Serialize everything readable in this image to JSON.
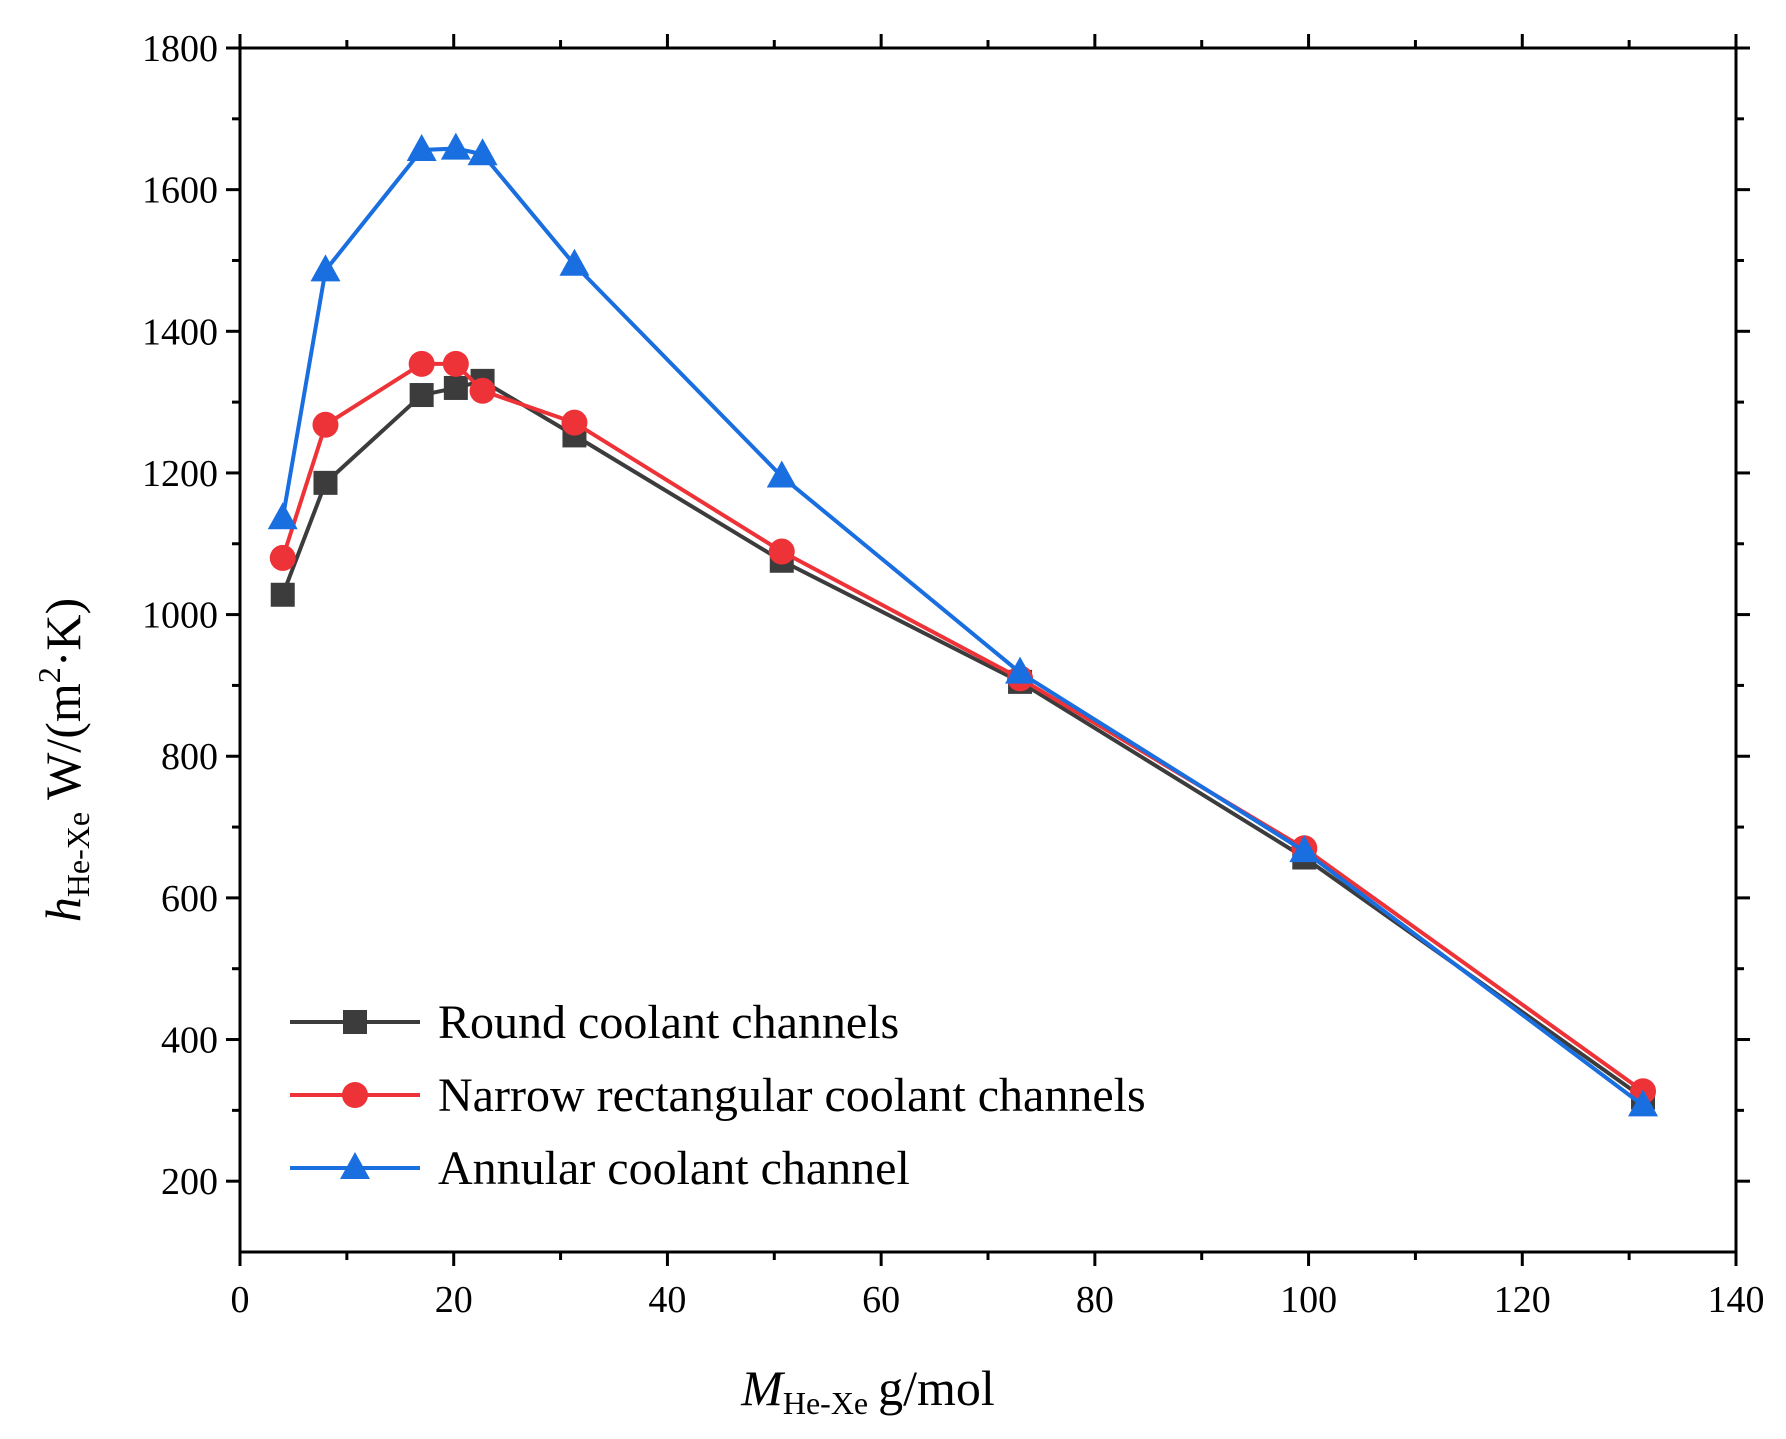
{
  "chart_data": {
    "type": "line",
    "title": "",
    "xlabel": {
      "main": "M",
      "sub": "He-Xe",
      "unit": "g/mol"
    },
    "ylabel": {
      "main": "h",
      "sub": "He-Xe",
      "unit_pre": "W/(m",
      "unit_sup": "2",
      "unit_post": "·K)"
    },
    "xlim": [
      0,
      140
    ],
    "ylim": [
      100,
      1800
    ],
    "xticks": [
      0,
      20,
      40,
      60,
      80,
      100,
      120,
      140
    ],
    "yticks": [
      200,
      400,
      600,
      800,
      1000,
      1200,
      1400,
      1600,
      1800
    ],
    "legend_position": "bottom-left",
    "series": [
      {
        "name": "Round coolant channels",
        "color": "#3c3c3c",
        "marker": "square",
        "x": [
          4,
          8,
          17,
          20.2,
          22.7,
          31.3,
          50.7,
          73,
          99.6,
          131.3
        ],
        "y": [
          1028,
          1186,
          1310,
          1320,
          1330,
          1253,
          1076,
          905,
          657,
          318
        ]
      },
      {
        "name": "Narrow rectangular coolant channels",
        "color": "#ee3338",
        "marker": "circle",
        "x": [
          4,
          8,
          17,
          20.2,
          22.7,
          31.3,
          50.7,
          73,
          99.6,
          131.3
        ],
        "y": [
          1080,
          1268,
          1354,
          1354,
          1316,
          1271,
          1089,
          910,
          670,
          327
        ]
      },
      {
        "name": "Annular coolant channel",
        "color": "#1a6fe0",
        "marker": "triangle",
        "x": [
          4,
          8,
          17,
          20.2,
          22.7,
          31.3,
          50.7,
          73,
          99.6,
          131.3
        ],
        "y": [
          1136,
          1486,
          1656,
          1658,
          1650,
          1494,
          1195,
          918,
          666,
          307
        ]
      }
    ]
  }
}
